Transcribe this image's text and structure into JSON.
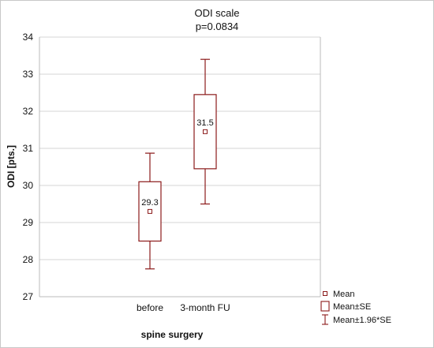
{
  "chart_data": {
    "type": "box",
    "title": "ODI scale",
    "subtitle": "p=0.0834",
    "xlabel": "spine surgery",
    "ylabel": "ODI [pts.]",
    "ylim": [
      27,
      34
    ],
    "yticks": [
      27,
      28,
      29,
      30,
      31,
      32,
      33,
      34
    ],
    "grid": true,
    "legend_position": "bottom-right",
    "categories": [
      "before",
      "3-month FU"
    ],
    "series": [
      {
        "mean": [
          29.3,
          31.45
        ],
        "mean_label": [
          "29.3",
          "31.5"
        ],
        "se_low": [
          28.5,
          30.45
        ],
        "se_high": [
          30.1,
          32.45
        ],
        "ci_low": [
          27.75,
          29.5
        ],
        "ci_high": [
          30.87,
          33.4
        ]
      }
    ],
    "legend": [
      {
        "marker": "mean",
        "label": "Mean"
      },
      {
        "marker": "box",
        "label": "Mean±SE"
      },
      {
        "marker": "whisker",
        "label": "Mean±1.96*SE"
      }
    ],
    "colors": {
      "series": "#8b1a1a",
      "grid": "#d4d4d4",
      "axis": "#555555"
    }
  }
}
